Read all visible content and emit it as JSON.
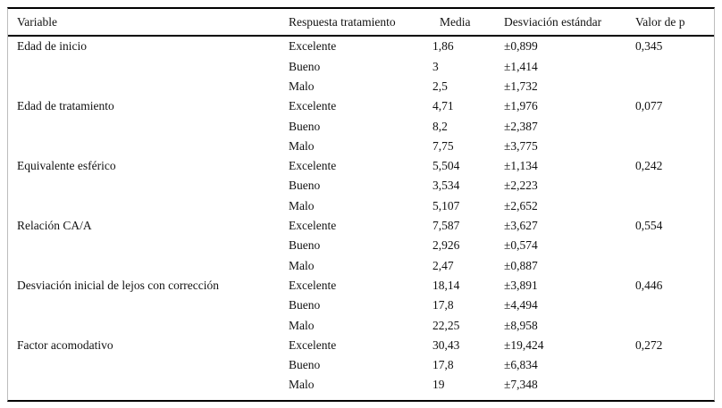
{
  "table": {
    "columns": [
      "Variable",
      "Respuesta tratamiento",
      "Media",
      "Desviación estándar",
      "Valor de p"
    ],
    "groups": [
      {
        "variable": "Edad de inicio",
        "p_value": "0,345",
        "rows": [
          {
            "respuesta": "Excelente",
            "media": "1,86",
            "desviacion": "±0,899"
          },
          {
            "respuesta": "Bueno",
            "media": "3",
            "desviacion": "±1,414"
          },
          {
            "respuesta": "Malo",
            "media": "2,5",
            "desviacion": "±1,732"
          }
        ]
      },
      {
        "variable": "Edad de tratamiento",
        "p_value": "0,077",
        "rows": [
          {
            "respuesta": "Excelente",
            "media": "4,71",
            "desviacion": "±1,976"
          },
          {
            "respuesta": "Bueno",
            "media": "8,2",
            "desviacion": "±2,387"
          },
          {
            "respuesta": "Malo",
            "media": "7,75",
            "desviacion": "±3,775"
          }
        ]
      },
      {
        "variable": "Equivalente esférico",
        "p_value": "0,242",
        "rows": [
          {
            "respuesta": "Excelente",
            "media": "5,504",
            "desviacion": "±1,134"
          },
          {
            "respuesta": "Bueno",
            "media": "3,534",
            "desviacion": "±2,223"
          },
          {
            "respuesta": "Malo",
            "media": "5,107",
            "desviacion": "±2,652"
          }
        ]
      },
      {
        "variable": "Relación CA/A",
        "p_value": "0,554",
        "rows": [
          {
            "respuesta": "Excelente",
            "media": "7,587",
            "desviacion": "±3,627"
          },
          {
            "respuesta": "Bueno",
            "media": "2,926",
            "desviacion": "±0,574"
          },
          {
            "respuesta": "Malo",
            "media": "2,47",
            "desviacion": "±0,887"
          }
        ]
      },
      {
        "variable": "Desviación inicial de lejos con corrección",
        "p_value": "0,446",
        "rows": [
          {
            "respuesta": "Excelente",
            "media": "18,14",
            "desviacion": "±3,891"
          },
          {
            "respuesta": "Bueno",
            "media": "17,8",
            "desviacion": "±4,494"
          },
          {
            "respuesta": "Malo",
            "media": "22,25",
            "desviacion": "±8,958"
          }
        ]
      },
      {
        "variable": "Factor acomodativo",
        "p_value": "0,272",
        "rows": [
          {
            "respuesta": "Excelente",
            "media": "30,43",
            "desviacion": "±19,424"
          },
          {
            "respuesta": "Bueno",
            "media": "17,8",
            "desviacion": "±6,834"
          },
          {
            "respuesta": "Malo",
            "media": "19",
            "desviacion": "±7,348"
          }
        ]
      }
    ]
  }
}
